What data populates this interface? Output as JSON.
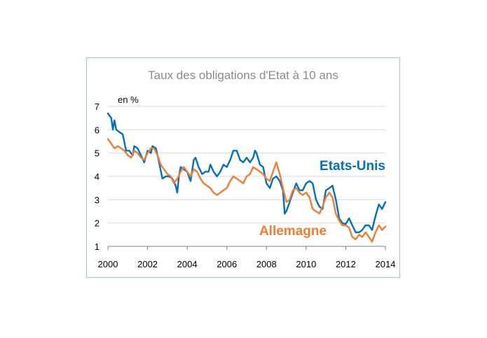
{
  "chart_data": {
    "type": "line",
    "title": "Taux des obligations d'Etat à 10 ans",
    "ylabel": "en %",
    "xlim": [
      2000,
      2014
    ],
    "ylim": [
      1,
      7
    ],
    "xticks": [
      2000,
      2002,
      2004,
      2006,
      2008,
      2010,
      2012,
      2014
    ],
    "yticks": [
      1,
      2,
      3,
      4,
      5,
      6,
      7
    ],
    "grid": true,
    "series": [
      {
        "name": "Etats-Unis",
        "color": "#0070c0",
        "points": [
          [
            2000.0,
            6.7
          ],
          [
            2000.17,
            6.5
          ],
          [
            2000.25,
            6.0
          ],
          [
            2000.33,
            6.4
          ],
          [
            2000.42,
            6.0
          ],
          [
            2000.58,
            5.9
          ],
          [
            2000.75,
            5.8
          ],
          [
            2000.92,
            5.1
          ],
          [
            2001.08,
            5.1
          ],
          [
            2001.25,
            4.9
          ],
          [
            2001.33,
            5.3
          ],
          [
            2001.5,
            5.2
          ],
          [
            2001.67,
            4.9
          ],
          [
            2001.83,
            4.6
          ],
          [
            2002.0,
            5.1
          ],
          [
            2002.17,
            5.0
          ],
          [
            2002.25,
            5.3
          ],
          [
            2002.42,
            5.2
          ],
          [
            2002.58,
            4.6
          ],
          [
            2002.75,
            3.9
          ],
          [
            2002.92,
            4.0
          ],
          [
            2003.08,
            4.0
          ],
          [
            2003.25,
            3.9
          ],
          [
            2003.42,
            3.6
          ],
          [
            2003.5,
            3.3
          ],
          [
            2003.58,
            4.0
          ],
          [
            2003.67,
            4.4
          ],
          [
            2003.83,
            4.3
          ],
          [
            2004.0,
            4.2
          ],
          [
            2004.17,
            3.8
          ],
          [
            2004.33,
            4.7
          ],
          [
            2004.42,
            4.8
          ],
          [
            2004.58,
            4.4
          ],
          [
            2004.75,
            4.1
          ],
          [
            2004.92,
            4.2
          ],
          [
            2005.08,
            4.2
          ],
          [
            2005.17,
            4.5
          ],
          [
            2005.33,
            4.2
          ],
          [
            2005.5,
            4.0
          ],
          [
            2005.67,
            4.2
          ],
          [
            2005.83,
            4.5
          ],
          [
            2006.0,
            4.4
          ],
          [
            2006.17,
            4.7
          ],
          [
            2006.33,
            5.1
          ],
          [
            2006.5,
            5.1
          ],
          [
            2006.67,
            4.7
          ],
          [
            2006.83,
            4.6
          ],
          [
            2007.0,
            4.8
          ],
          [
            2007.17,
            4.6
          ],
          [
            2007.33,
            4.8
          ],
          [
            2007.42,
            5.1
          ],
          [
            2007.5,
            5.0
          ],
          [
            2007.67,
            4.5
          ],
          [
            2007.83,
            4.4
          ],
          [
            2008.0,
            3.7
          ],
          [
            2008.17,
            3.5
          ],
          [
            2008.33,
            3.9
          ],
          [
            2008.5,
            4.0
          ],
          [
            2008.67,
            3.8
          ],
          [
            2008.83,
            3.4
          ],
          [
            2008.92,
            2.4
          ],
          [
            2009.0,
            2.5
          ],
          [
            2009.17,
            2.9
          ],
          [
            2009.33,
            3.3
          ],
          [
            2009.5,
            3.7
          ],
          [
            2009.67,
            3.4
          ],
          [
            2009.83,
            3.4
          ],
          [
            2010.0,
            3.7
          ],
          [
            2010.17,
            3.8
          ],
          [
            2010.33,
            3.7
          ],
          [
            2010.5,
            3.0
          ],
          [
            2010.67,
            2.7
          ],
          [
            2010.83,
            2.6
          ],
          [
            2011.0,
            3.4
          ],
          [
            2011.17,
            3.5
          ],
          [
            2011.33,
            3.6
          ],
          [
            2011.5,
            3.0
          ],
          [
            2011.67,
            2.2
          ],
          [
            2011.83,
            2.0
          ],
          [
            2012.0,
            1.95
          ],
          [
            2012.17,
            2.2
          ],
          [
            2012.33,
            1.9
          ],
          [
            2012.5,
            1.6
          ],
          [
            2012.67,
            1.6
          ],
          [
            2012.83,
            1.7
          ],
          [
            2013.0,
            1.9
          ],
          [
            2013.17,
            1.9
          ],
          [
            2013.33,
            1.7
          ],
          [
            2013.5,
            2.3
          ],
          [
            2013.67,
            2.8
          ],
          [
            2013.83,
            2.6
          ],
          [
            2014.0,
            2.9
          ]
        ]
      },
      {
        "name": "Allemagne",
        "color": "#f47c30",
        "points": [
          [
            2000.0,
            5.6
          ],
          [
            2000.17,
            5.4
          ],
          [
            2000.33,
            5.2
          ],
          [
            2000.5,
            5.3
          ],
          [
            2000.67,
            5.2
          ],
          [
            2000.83,
            5.1
          ],
          [
            2001.0,
            4.9
          ],
          [
            2001.17,
            4.8
          ],
          [
            2001.33,
            5.1
          ],
          [
            2001.5,
            5.0
          ],
          [
            2001.67,
            4.8
          ],
          [
            2001.83,
            4.7
          ],
          [
            2002.0,
            5.0
          ],
          [
            2002.17,
            5.2
          ],
          [
            2002.33,
            5.2
          ],
          [
            2002.5,
            4.9
          ],
          [
            2002.67,
            4.5
          ],
          [
            2002.83,
            4.3
          ],
          [
            2003.0,
            4.1
          ],
          [
            2003.17,
            4.0
          ],
          [
            2003.33,
            3.7
          ],
          [
            2003.5,
            3.9
          ],
          [
            2003.67,
            4.2
          ],
          [
            2003.83,
            4.4
          ],
          [
            2004.0,
            4.2
          ],
          [
            2004.17,
            4.0
          ],
          [
            2004.33,
            4.3
          ],
          [
            2004.5,
            4.2
          ],
          [
            2004.67,
            3.9
          ],
          [
            2004.83,
            3.7
          ],
          [
            2005.0,
            3.6
          ],
          [
            2005.17,
            3.5
          ],
          [
            2005.33,
            3.3
          ],
          [
            2005.5,
            3.2
          ],
          [
            2005.67,
            3.3
          ],
          [
            2005.83,
            3.4
          ],
          [
            2006.0,
            3.5
          ],
          [
            2006.17,
            3.8
          ],
          [
            2006.33,
            4.0
          ],
          [
            2006.5,
            3.9
          ],
          [
            2006.67,
            3.8
          ],
          [
            2006.83,
            3.7
          ],
          [
            2007.0,
            4.0
          ],
          [
            2007.17,
            4.1
          ],
          [
            2007.33,
            4.4
          ],
          [
            2007.5,
            4.3
          ],
          [
            2007.67,
            4.2
          ],
          [
            2007.83,
            4.1
          ],
          [
            2008.0,
            3.9
          ],
          [
            2008.17,
            3.8
          ],
          [
            2008.33,
            4.2
          ],
          [
            2008.5,
            4.6
          ],
          [
            2008.67,
            4.1
          ],
          [
            2008.83,
            3.5
          ],
          [
            2009.0,
            2.9
          ],
          [
            2009.17,
            3.0
          ],
          [
            2009.33,
            3.4
          ],
          [
            2009.5,
            3.5
          ],
          [
            2009.67,
            3.3
          ],
          [
            2009.83,
            3.2
          ],
          [
            2010.0,
            3.3
          ],
          [
            2010.17,
            3.1
          ],
          [
            2010.33,
            2.6
          ],
          [
            2010.5,
            2.5
          ],
          [
            2010.67,
            2.4
          ],
          [
            2010.83,
            2.7
          ],
          [
            2011.0,
            3.1
          ],
          [
            2011.17,
            3.3
          ],
          [
            2011.33,
            3.1
          ],
          [
            2011.5,
            2.4
          ],
          [
            2011.67,
            2.1
          ],
          [
            2011.83,
            1.9
          ],
          [
            2012.0,
            1.9
          ],
          [
            2012.17,
            1.8
          ],
          [
            2012.33,
            1.4
          ],
          [
            2012.5,
            1.3
          ],
          [
            2012.67,
            1.5
          ],
          [
            2012.83,
            1.4
          ],
          [
            2013.0,
            1.6
          ],
          [
            2013.17,
            1.4
          ],
          [
            2013.33,
            1.2
          ],
          [
            2013.5,
            1.6
          ],
          [
            2013.67,
            1.9
          ],
          [
            2013.83,
            1.7
          ],
          [
            2014.0,
            1.85
          ]
        ]
      }
    ]
  }
}
